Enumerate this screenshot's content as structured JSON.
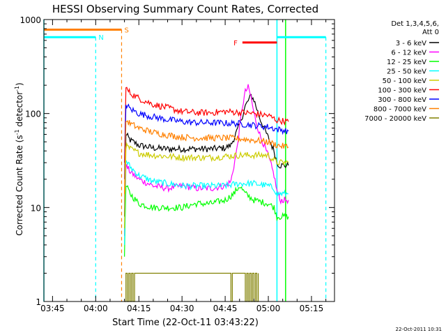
{
  "chart_data": {
    "type": "line",
    "title": "HESSI Observing Summary Count Rates, Corrected",
    "xlabel": "Start Time (22-Oct-11 03:43:22)",
    "ylabel_main": "Corrected Count Rate (s",
    "ylabel_exp1": "-1",
    "ylabel_mid": " detector",
    "ylabel_exp2": "-1",
    "ylabel_end": ")",
    "y_scale": "log",
    "ylim": [
      1,
      1000
    ],
    "xlim": [
      "03:42",
      "05:23"
    ],
    "x_ticks": [
      "03:45",
      "04:00",
      "04:15",
      "04:30",
      "04:45",
      "05:00",
      "05:15"
    ],
    "y_ticks": [
      "1",
      "10",
      "100",
      "1000"
    ],
    "timestamp": "22-Oct-2011 10:31",
    "legend_header": [
      "Det 1,3,4,5,6,",
      "Att 0"
    ],
    "legend_position": "right",
    "series": [
      {
        "name": "3 - 6 keV",
        "color": "#000000",
        "x": [
          "04:10",
          "04:10.5",
          "04:12",
          "04:15",
          "04:20",
          "04:25",
          "04:30",
          "04:35",
          "04:40",
          "04:45",
          "04:47",
          "04:50",
          "04:52",
          "04:54",
          "04:55",
          "04:57",
          "05:00",
          "05:02",
          "05:03",
          "05:04",
          "05:06",
          "05:07"
        ],
        "y": [
          8,
          60,
          52,
          46,
          43,
          42,
          42,
          42,
          42,
          43,
          46,
          75,
          120,
          155,
          140,
          90,
          55,
          40,
          30,
          28,
          28,
          28
        ]
      },
      {
        "name": "6 - 12 keV",
        "color": "#ff00ff",
        "x": [
          "04:10",
          "04:10.5",
          "04:12",
          "04:15",
          "04:20",
          "04:25",
          "04:30",
          "04:35",
          "04:40",
          "04:45",
          "04:47",
          "04:49",
          "04:50",
          "04:51",
          "04:52",
          "04:53",
          "04:54",
          "04:55",
          "04:57",
          "05:00",
          "05:02",
          "05:03",
          "05:04",
          "05:07"
        ],
        "y": [
          5,
          28,
          24,
          20,
          17,
          16,
          17,
          16,
          16,
          17,
          19,
          40,
          70,
          120,
          170,
          190,
          150,
          100,
          60,
          35,
          22,
          15,
          12,
          12
        ]
      },
      {
        "name": "12 - 25 keV",
        "color": "#00ff00",
        "x": [
          "04:10",
          "04:10.5",
          "04:12",
          "04:15",
          "04:20",
          "04:25",
          "04:30",
          "04:35",
          "04:40",
          "04:45",
          "04:48",
          "04:50",
          "04:52",
          "04:55",
          "05:00",
          "05:02",
          "05:03",
          "05:07"
        ],
        "y": [
          3,
          17,
          14,
          11,
          10,
          10,
          10,
          11,
          11,
          12,
          14,
          17,
          14,
          12,
          11,
          10,
          8,
          8
        ]
      },
      {
        "name": "25 - 50 keV",
        "color": "#00ffff",
        "x": [
          "04:10",
          "04:10.5",
          "04:12",
          "04:15",
          "04:20",
          "04:25",
          "04:30",
          "04:35",
          "04:40",
          "04:45",
          "04:50",
          "04:55",
          "05:00",
          "05:02",
          "05:03",
          "05:07"
        ],
        "y": [
          4,
          32,
          27,
          22,
          19,
          18,
          17,
          17,
          17,
          17,
          18,
          18,
          17,
          16,
          14,
          14
        ]
      },
      {
        "name": "50 - 100 keV",
        "color": "#cccc00",
        "x": [
          "04:10",
          "04:10.5",
          "04:12",
          "04:15",
          "04:20",
          "04:25",
          "04:30",
          "04:35",
          "04:40",
          "04:45",
          "04:50",
          "04:55",
          "05:00",
          "05:03",
          "05:07"
        ],
        "y": [
          6,
          45,
          42,
          38,
          36,
          35,
          34,
          34,
          34,
          35,
          36,
          36,
          36,
          30,
          30
        ]
      },
      {
        "name": "100 - 300 keV",
        "color": "#ff0000",
        "x": [
          "04:10",
          "04:10.5",
          "04:12",
          "04:15",
          "04:20",
          "04:25",
          "04:30",
          "04:35",
          "04:40",
          "04:45",
          "04:50",
          "04:55",
          "05:00",
          "05:03",
          "05:07"
        ],
        "y": [
          30,
          185,
          165,
          145,
          125,
          115,
          105,
          102,
          102,
          105,
          103,
          100,
          95,
          85,
          82
        ]
      },
      {
        "name": "300 - 800 keV",
        "color": "#0000ff",
        "x": [
          "04:10",
          "04:10.5",
          "04:12",
          "04:15",
          "04:20",
          "04:25",
          "04:30",
          "04:35",
          "04:40",
          "04:45",
          "04:50",
          "04:55",
          "05:00",
          "05:03",
          "05:07"
        ],
        "y": [
          20,
          125,
          112,
          100,
          92,
          86,
          82,
          80,
          80,
          79,
          78,
          75,
          72,
          68,
          65
        ]
      },
      {
        "name": "800 - 7000 keV",
        "color": "#ff8000",
        "x": [
          "04:10",
          "04:10.5",
          "04:12",
          "04:15",
          "04:20",
          "04:25",
          "04:30",
          "04:35",
          "04:40",
          "04:45",
          "04:50",
          "04:55",
          "05:00",
          "05:03",
          "05:07"
        ],
        "y": [
          14,
          85,
          78,
          70,
          63,
          59,
          56,
          55,
          55,
          55,
          54,
          52,
          50,
          46,
          44
        ]
      },
      {
        "name": "7000 - 20000 keV",
        "color": "#808000",
        "x": [
          "04:10",
          "04:10.5",
          "04:11",
          "04:11.5",
          "04:12",
          "04:12.5",
          "04:13",
          "04:13.5",
          "04:47",
          "04:47.5",
          "04:52",
          "04:52.5",
          "04:53",
          "04:53.5",
          "04:54",
          "04:54.5",
          "04:55",
          "04:55.5",
          "04:56",
          "04:56.5"
        ],
        "y": [
          1,
          2,
          1,
          2,
          1,
          2,
          1,
          2,
          1,
          2,
          1,
          2,
          1,
          2,
          1,
          2,
          1,
          2,
          1,
          2
        ]
      }
    ],
    "annotations": [
      {
        "label": "N",
        "color": "#00ffff",
        "bar": [
          "03:42",
          "04:00"
        ],
        "y": 650,
        "line_at": "04:00"
      },
      {
        "label": "S",
        "color": "#ff8000",
        "bar": [
          "03:42",
          "04:09"
        ],
        "y": 780,
        "line_at": "04:09"
      },
      {
        "label": "F",
        "color": "#ff0000",
        "bar": [
          "04:51",
          "05:03"
        ],
        "y": 570,
        "line_at": null
      },
      {
        "label": "",
        "color": "#00ffff",
        "bar": [
          "05:03",
          "05:20"
        ],
        "y": 650,
        "line_at": "05:20"
      }
    ],
    "vertical_markers": [
      {
        "at": "03:42",
        "color": "#00ffff",
        "style": "solid"
      },
      {
        "at": "05:03",
        "color": "#00ffff",
        "style": "solid"
      },
      {
        "at": "05:06",
        "color": "#00ff00",
        "style": "solid"
      }
    ]
  }
}
